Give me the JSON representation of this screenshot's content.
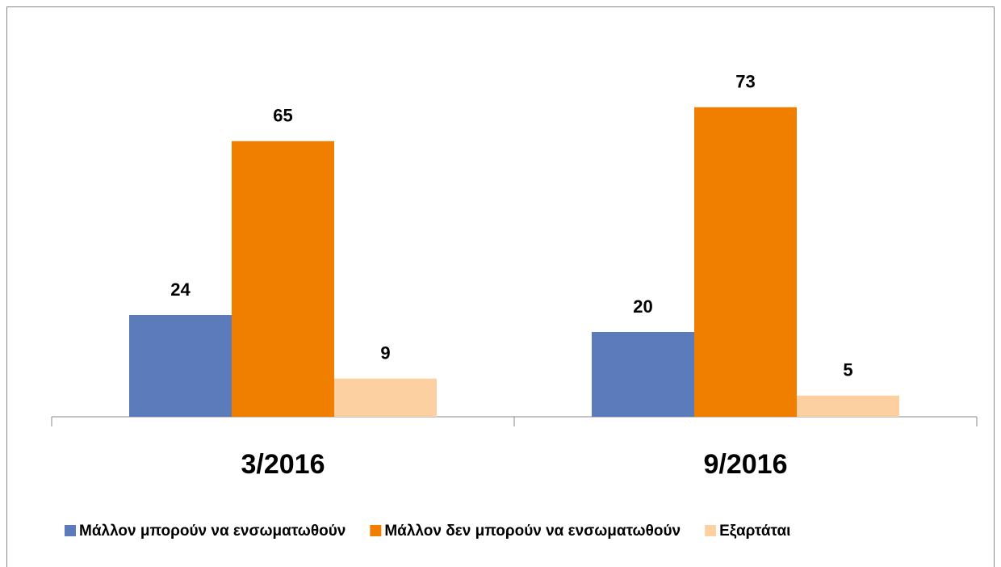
{
  "chart_data": {
    "type": "bar",
    "categories": [
      "3/2016",
      "9/2016"
    ],
    "series": [
      {
        "name": "Μάλλον μπορούν να ενσωματωθούν",
        "color": "#5b7bbb",
        "values": [
          24,
          20
        ]
      },
      {
        "name": "Μάλλον δεν μπορούν να ενσωματωθούν",
        "color": "#f07f00",
        "values": [
          65,
          73
        ]
      },
      {
        "name": "Εξαρτάται",
        "color": "#fcd0a1",
        "values": [
          9,
          5
        ]
      }
    ],
    "legend": "bottom"
  }
}
